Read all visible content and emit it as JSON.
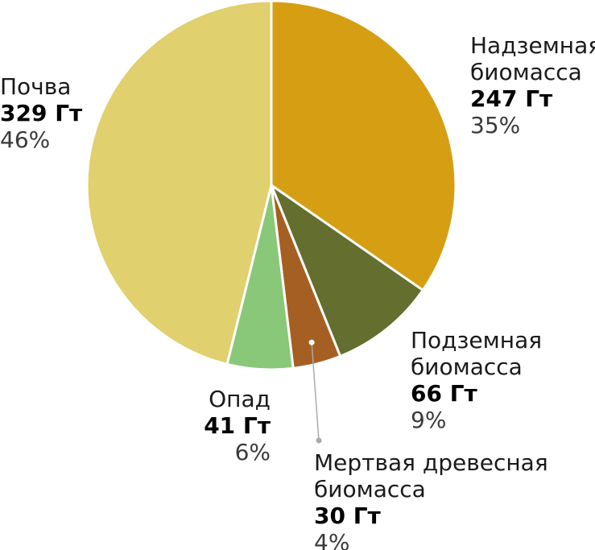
{
  "chart_data": {
    "type": "pie",
    "unit": "Гт",
    "slices": [
      {
        "name_lines": [
          "Надземная",
          "биомасса"
        ],
        "value": 247,
        "value_label": "247 Гт",
        "percent": 35,
        "percent_label": "35%",
        "color": "#D69E13"
      },
      {
        "name_lines": [
          "Подземная",
          "биомасса"
        ],
        "value": 66,
        "value_label": "66 Гт",
        "percent": 9,
        "percent_label": "9%",
        "color": "#636E2F"
      },
      {
        "name_lines": [
          "Мертвая древесная",
          "биомасса"
        ],
        "value": 30,
        "value_label": "30 Гт",
        "percent": 4,
        "percent_label": "4%",
        "color": "#A65F22"
      },
      {
        "name_lines": [
          "Опад"
        ],
        "value": 41,
        "value_label": "41 Гт",
        "percent": 6,
        "percent_label": "6%",
        "color": "#88C878"
      },
      {
        "name_lines": [
          "Почва"
        ],
        "value": 329,
        "value_label": "329 Гт",
        "percent": 46,
        "percent_label": "46%",
        "color": "#E0D06E"
      }
    ],
    "start_angle": "12 o'clock",
    "direction": "clockwise"
  }
}
